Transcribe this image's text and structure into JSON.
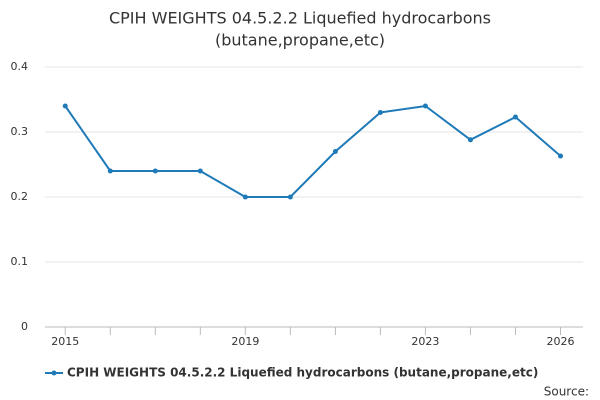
{
  "chart_data": {
    "type": "line",
    "title": [
      "CPIH WEIGHTS 04.5.2.2 Liquefied hydrocarbons",
      "(butane,propane,etc)"
    ],
    "x": [
      2015,
      2016,
      2017,
      2018,
      2019,
      2020,
      2021,
      2022,
      2023,
      2024,
      2025,
      2026
    ],
    "series": [
      {
        "name": "CPIH WEIGHTS 04.5.2.2 Liquefied hydrocarbons (butane,propane,etc)",
        "color": "#1f7ab8",
        "values": [
          0.34,
          0.24,
          0.24,
          0.24,
          0.2,
          0.2,
          0.27,
          0.33,
          0.34,
          0.288,
          0.323,
          0.263
        ]
      }
    ],
    "xlim": [
      2014.55,
      2026.5
    ],
    "xticks": [
      2015,
      2019,
      2023,
      2026
    ],
    "ylim": [
      0,
      0.4
    ],
    "yticks": [
      0,
      0.1,
      0.2,
      0.3,
      0.4
    ],
    "grid": true,
    "legend": "bottom",
    "source": "Source:"
  }
}
